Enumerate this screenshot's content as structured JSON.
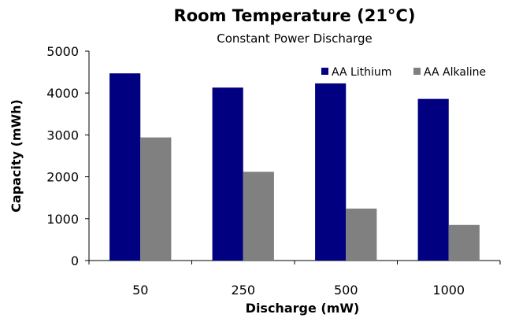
{
  "chart_data": {
    "type": "bar",
    "title": "Room Temperature (21°C)",
    "subtitle": "Constant Power Discharge",
    "xlabel": "Discharge (mW)",
    "ylabel": "Capacity (mWh)",
    "categories": [
      "50",
      "250",
      "500",
      "1000"
    ],
    "ylim": [
      0,
      5000
    ],
    "yticks": [
      0,
      1000,
      2000,
      3000,
      4000,
      5000
    ],
    "grid": false,
    "legend_position": "top-right",
    "series": [
      {
        "name": "AA Lithium",
        "color": "#000080",
        "values": [
          4470,
          4130,
          4230,
          3860
        ]
      },
      {
        "name": "AA Alkaline",
        "color": "#808080",
        "values": [
          2940,
          2120,
          1240,
          850
        ]
      }
    ]
  }
}
